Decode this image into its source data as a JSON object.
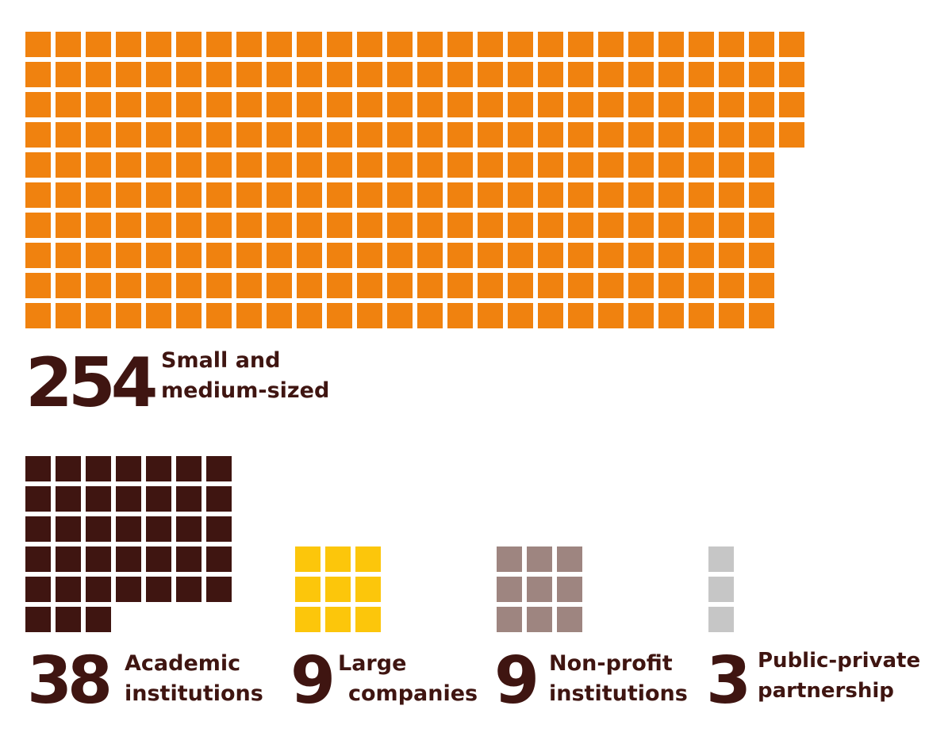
{
  "chart_data": {
    "type": "waffle",
    "unit": "one square per partner",
    "categories": [
      {
        "key": "sme",
        "value": 254,
        "count_label": "254",
        "label_lines": [
          "Small and",
          "medium-sized"
        ],
        "color": "#f0820f",
        "columns": 26,
        "fill_order": "column-major"
      },
      {
        "key": "academic",
        "value": 38,
        "count_label": "38",
        "label_lines": [
          "Academic",
          "institutions"
        ],
        "color": "#3f1511",
        "columns": 7,
        "fill_order": "row-major"
      },
      {
        "key": "large",
        "value": 9,
        "count_label": "9",
        "label_lines": [
          "Large",
          "companies"
        ],
        "color": "#fcc60b",
        "columns": 3,
        "fill_order": "row-major"
      },
      {
        "key": "nonprofit",
        "value": 9,
        "count_label": "9",
        "label_lines": [
          "Non-profit",
          "institutions"
        ],
        "color": "#9e8580",
        "columns": 3,
        "fill_order": "row-major"
      },
      {
        "key": "ppp",
        "value": 3,
        "count_label": "3",
        "label_lines": [
          "Public-private",
          "partnership"
        ],
        "color": "#c6c6c6",
        "columns": 1,
        "fill_order": "row-major"
      }
    ]
  }
}
